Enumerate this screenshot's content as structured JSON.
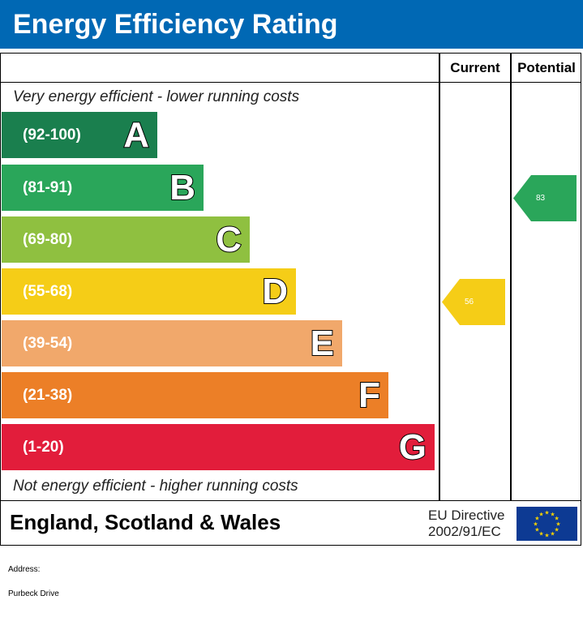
{
  "header": {
    "title": "Energy Efficiency Rating"
  },
  "columns": {
    "current": "Current",
    "potential": "Potential"
  },
  "captions": {
    "top": "Very energy efficient - lower running costs",
    "bottom": "Not energy efficient - higher running costs"
  },
  "chart_data": {
    "type": "bar",
    "categories": [
      "A",
      "B",
      "C",
      "D",
      "E",
      "F",
      "G"
    ],
    "bands": [
      {
        "range": "(92-100)",
        "letter": "A",
        "color": "#1a7f4e",
        "value": 100
      },
      {
        "range": "(81-91)",
        "letter": "B",
        "color": "#2aa65a",
        "value": 91
      },
      {
        "range": "(69-80)",
        "letter": "C",
        "color": "#8fc040",
        "value": 80
      },
      {
        "range": "(55-68)",
        "letter": "D",
        "color": "#f5cd17",
        "value": 68
      },
      {
        "range": "(39-54)",
        "letter": "E",
        "color": "#f1a86b",
        "value": 54
      },
      {
        "range": "(21-38)",
        "letter": "F",
        "color": "#ec7f27",
        "value": 38
      },
      {
        "range": "(1-20)",
        "letter": "G",
        "color": "#e21d3b",
        "value": 20
      }
    ],
    "current": {
      "value": "56",
      "band": "D",
      "color": "#f5cd17"
    },
    "potential": {
      "value": "83",
      "band": "B",
      "color": "#2aa65a"
    }
  },
  "footer": {
    "region": "England, Scotland & Wales",
    "directive_line1": "EU Directive",
    "directive_line2": "2002/91/EC",
    "flag_color": "#0d3a93",
    "star_color": "#f5d300"
  },
  "address": {
    "label": "Address:",
    "value": "Purbeck Drive"
  }
}
